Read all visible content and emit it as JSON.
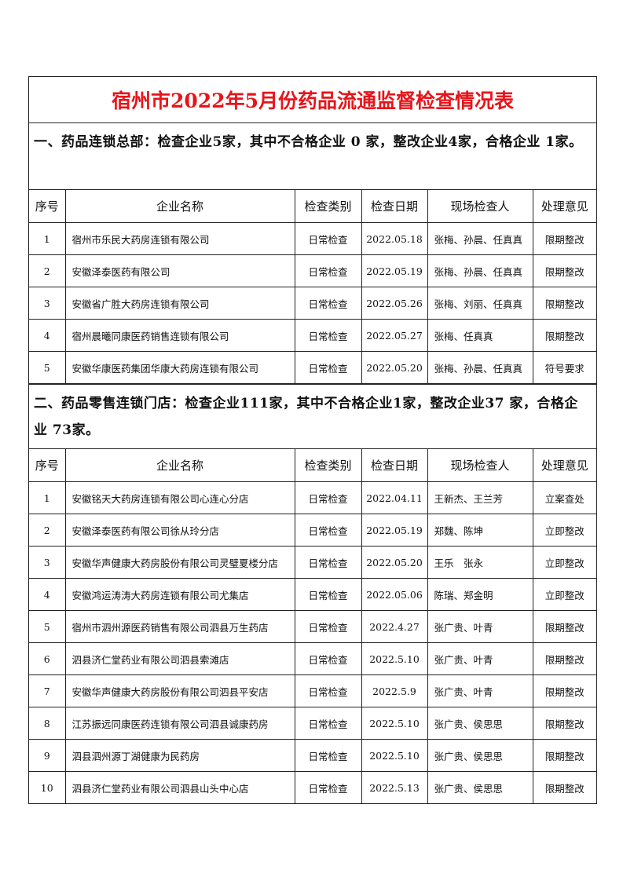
{
  "title": "宿州市2022年5月份药品流通监督检查情况表",
  "headers": [
    "序号",
    "企业名称",
    "检查类别",
    "检查日期",
    "现场检查人",
    "处理意见"
  ],
  "section1": {
    "heading": "一、药品连锁总部：检查企业5家，其中不合格企业 0 家，整改企业4家，合格企业 1家。",
    "rows": [
      [
        "1",
        "宿州市乐民大药房连锁有限公司",
        "日常检查",
        "2022.05.18",
        "张梅、孙晨、任真真",
        "限期整改"
      ],
      [
        "2",
        "安徽泽泰医药有限公司",
        "日常检查",
        "2022.05.19",
        "张梅、孙晨、任真真",
        "限期整改"
      ],
      [
        "3",
        "安徽省广胜大药房连锁有限公司",
        "日常检查",
        "2022.05.26",
        "张梅、刘丽、任真真",
        "限期整改"
      ],
      [
        "4",
        "宿州晨曦同康医药销售连锁有限公司",
        "日常检查",
        "2022.05.27",
        "张梅、任真真",
        "限期整改"
      ],
      [
        "5",
        "安徽华康医药集团华康大药房连锁有限公司",
        "日常检查",
        "2022.05.20",
        "张梅、孙晨、任真真",
        "符号要求"
      ]
    ]
  },
  "section2": {
    "heading": "二、药品零售连锁门店：检查企业111家，其中不合格企业1家，整改企业37 家，合格企业 73家。",
    "rows": [
      [
        "1",
        "安徽铭天大药房连锁有限公司心连心分店",
        "日常检查",
        "2022.04.11",
        "王新杰、王兰芳",
        "立案查处"
      ],
      [
        "2",
        "安徽泽泰医药有限公司徐从玲分店",
        "日常检查",
        "2022.05.19",
        "郑魏、陈坤",
        "立即整改"
      ],
      [
        "3",
        "安徽华声健康大药房股份有限公司灵璧夏楼分店",
        "日常检查",
        "2022.05.20",
        "王乐　张永",
        "立即整改"
      ],
      [
        "4",
        "安徽鸿运涛涛大药房连锁有限公司尤集店",
        "日常检查",
        "2022.05.06",
        "陈瑞、郑金明",
        "立即整改"
      ],
      [
        "5",
        "宿州市泗州源医药销售有限公司泗县万生药店",
        "日常检查",
        "2022.4.27",
        "张广贵、叶青",
        "限期整改"
      ],
      [
        "6",
        "泗县济仁堂药业有限公司泗县索滩店",
        "日常检查",
        "2022.5.10",
        "张广贵、叶青",
        "限期整改"
      ],
      [
        "7",
        "安徽华声健康大药房股份有限公司泗县平安店",
        "日常检查",
        "2022.5.9",
        "张广贵、叶青",
        "限期整改"
      ],
      [
        "8",
        "江苏振远同康医药连锁有限公司泗县诚康药房",
        "日常检查",
        "2022.5.10",
        "张广贵、侯思思",
        "限期整改"
      ],
      [
        "9",
        "泗县泗州源丁湖健康为民药房",
        "日常检查",
        "2022.5.10",
        "张广贵、侯思思",
        "限期整改"
      ],
      [
        "10",
        "泗县济仁堂药业有限公司泗县山头中心店",
        "日常检查",
        "2022.5.13",
        "张广贵、侯思思",
        "限期整改"
      ]
    ]
  }
}
